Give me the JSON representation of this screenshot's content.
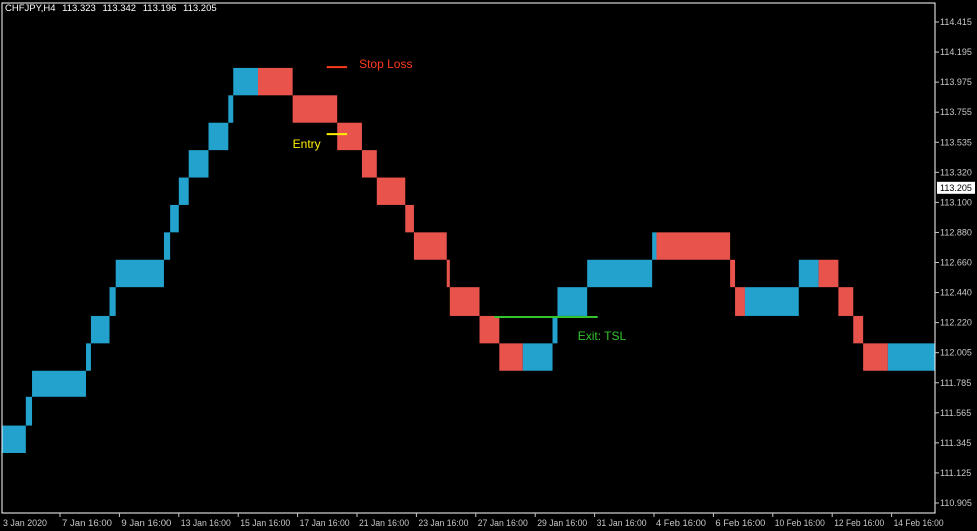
{
  "header": {
    "symbol": "CHFJPY,H4",
    "open": "113.323",
    "high": "113.342",
    "low": "113.196",
    "close": "113.205"
  },
  "colors": {
    "background": "#000000",
    "frame": "#ffffff",
    "axis_text": "#c8c8c8",
    "up_box": "#22a2cc",
    "down_box": "#e8534b",
    "stop_loss": "#ff3b1f",
    "entry": "#ffee00",
    "exit": "#33c42e"
  },
  "chart_data": {
    "type": "box-trend-overlay",
    "symbol": "CHFJPY",
    "timeframe": "H4",
    "current_price": "113.205",
    "ylim": [
      110.905,
      114.415
    ],
    "y_ticks": [
      "114.415",
      "114.195",
      "113.975",
      "113.755",
      "113.535",
      "113.320",
      "113.100",
      "112.880",
      "112.660",
      "112.440",
      "112.220",
      "112.005",
      "111.785",
      "111.565",
      "111.345",
      "111.125",
      "110.905"
    ],
    "x_ticks": [
      {
        "label": "3 Jan 2020",
        "time": "2020-01-03 00:00"
      },
      {
        "label": "7 Jan 16:00",
        "time": "2020-01-07 16:00"
      },
      {
        "label": "9 Jan 16:00",
        "time": "2020-01-09 16:00"
      },
      {
        "label": "13 Jan 16:00",
        "time": "2020-01-13 16:00"
      },
      {
        "label": "15 Jan 16:00",
        "time": "2020-01-15 16:00"
      },
      {
        "label": "17 Jan 16:00",
        "time": "2020-01-17 16:00"
      },
      {
        "label": "21 Jan 16:00",
        "time": "2020-01-21 16:00"
      },
      {
        "label": "23 Jan 16:00",
        "time": "2020-01-23 16:00"
      },
      {
        "label": "27 Jan 16:00",
        "time": "2020-01-27 16:00"
      },
      {
        "label": "29 Jan 16:00",
        "time": "2020-01-29 16:00"
      },
      {
        "label": "31 Jan 16:00",
        "time": "2020-01-31 16:00"
      },
      {
        "label": "4 Feb 16:00",
        "time": "2020-02-04 16:00"
      },
      {
        "label": "6 Feb 16:00",
        "time": "2020-02-06 16:00"
      },
      {
        "label": "10 Feb 16:00",
        "time": "2020-02-10 16:00"
      },
      {
        "label": "12 Feb 16:00",
        "time": "2020-02-12 16:00"
      },
      {
        "label": "14 Feb 16:00",
        "time": "2020-02-14 16:00"
      }
    ],
    "boxes": [
      {
        "start": "2020-01-03 00:00",
        "end": "2020-01-04 22:00",
        "high": 111.47,
        "low": 111.27,
        "trend": "up"
      },
      {
        "start": "2020-01-04 22:00",
        "end": "2020-01-05 10:00",
        "high": 111.68,
        "low": 111.47,
        "trend": "up"
      },
      {
        "start": "2020-01-05 10:00",
        "end": "2020-01-08 13:00",
        "high": 111.87,
        "low": 111.68,
        "trend": "up"
      },
      {
        "start": "2020-01-08 13:00",
        "end": "2020-01-08 17:00",
        "high": 112.07,
        "low": 111.87,
        "trend": "up"
      },
      {
        "start": "2020-01-08 17:00",
        "end": "2020-01-09 08:00",
        "high": 112.27,
        "low": 112.07,
        "trend": "up"
      },
      {
        "start": "2020-01-09 08:00",
        "end": "2020-01-09 13:00",
        "high": 112.48,
        "low": 112.27,
        "trend": "up"
      },
      {
        "start": "2020-01-09 13:00",
        "end": "2020-01-12 16:00",
        "high": 112.68,
        "low": 112.48,
        "trend": "up"
      },
      {
        "start": "2020-01-12 16:00",
        "end": "2020-01-13 02:00",
        "high": 112.88,
        "low": 112.68,
        "trend": "up"
      },
      {
        "start": "2020-01-13 02:00",
        "end": "2020-01-13 16:00",
        "high": 113.08,
        "low": 112.88,
        "trend": "up"
      },
      {
        "start": "2020-01-13 16:00",
        "end": "2020-01-14 00:00",
        "high": 113.28,
        "low": 113.08,
        "trend": "up"
      },
      {
        "start": "2020-01-14 00:00",
        "end": "2020-01-14 16:00",
        "high": 113.48,
        "low": 113.28,
        "trend": "up"
      },
      {
        "start": "2020-01-14 16:00",
        "end": "2020-01-15 08:00",
        "high": 113.68,
        "low": 113.48,
        "trend": "up"
      },
      {
        "start": "2020-01-15 08:00",
        "end": "2020-01-15 12:00",
        "high": 113.88,
        "low": 113.68,
        "trend": "up"
      },
      {
        "start": "2020-01-15 12:00",
        "end": "2020-01-16 08:00",
        "high": 114.08,
        "low": 113.88,
        "trend": "up"
      },
      {
        "start": "2020-01-16 08:00",
        "end": "2020-01-17 12:00",
        "high": 114.08,
        "low": 113.88,
        "trend": "down"
      },
      {
        "start": "2020-01-17 12:00",
        "end": "2020-01-20 08:00",
        "high": 113.88,
        "low": 113.68,
        "trend": "down"
      },
      {
        "start": "2020-01-20 08:00",
        "end": "2020-01-21 20:00",
        "high": 113.68,
        "low": 113.48,
        "trend": "down"
      },
      {
        "start": "2020-01-21 20:00",
        "end": "2020-01-22 08:00",
        "high": 113.48,
        "low": 113.28,
        "trend": "down"
      },
      {
        "start": "2020-01-22 08:00",
        "end": "2020-01-23 07:00",
        "high": 113.28,
        "low": 113.08,
        "trend": "down"
      },
      {
        "start": "2020-01-23 07:00",
        "end": "2020-01-23 14:00",
        "high": 113.08,
        "low": 112.88,
        "trend": "down"
      },
      {
        "start": "2020-01-23 14:00",
        "end": "2020-01-25 17:00",
        "high": 112.88,
        "low": 112.68,
        "trend": "down"
      },
      {
        "start": "2020-01-25 17:00",
        "end": "2020-01-25 22:00",
        "high": 112.68,
        "low": 112.48,
        "trend": "down"
      },
      {
        "start": "2020-01-25 22:00",
        "end": "2020-01-27 19:00",
        "high": 112.48,
        "low": 112.27,
        "trend": "down"
      },
      {
        "start": "2020-01-27 19:00",
        "end": "2020-01-28 11:00",
        "high": 112.27,
        "low": 112.07,
        "trend": "down"
      },
      {
        "start": "2020-01-28 11:00",
        "end": "2020-01-29 06:00",
        "high": 112.07,
        "low": 111.87,
        "trend": "down"
      },
      {
        "start": "2020-01-29 06:00",
        "end": "2020-01-30 06:00",
        "high": 112.07,
        "low": 111.87,
        "trend": "up"
      },
      {
        "start": "2020-01-30 06:00",
        "end": "2020-01-30 10:00",
        "high": 112.27,
        "low": 112.07,
        "trend": "up"
      },
      {
        "start": "2020-01-30 10:00",
        "end": "2020-01-31 10:00",
        "high": 112.48,
        "low": 112.27,
        "trend": "up"
      },
      {
        "start": "2020-01-31 10:00",
        "end": "2020-02-04 13:00",
        "high": 112.68,
        "low": 112.48,
        "trend": "up"
      },
      {
        "start": "2020-02-04 13:00",
        "end": "2020-02-04 18:00",
        "high": 112.88,
        "low": 112.68,
        "trend": "up"
      },
      {
        "start": "2020-02-04 18:00",
        "end": "2020-02-07 19:00",
        "high": 112.88,
        "low": 112.68,
        "trend": "down"
      },
      {
        "start": "2020-02-07 19:00",
        "end": "2020-02-08 03:00",
        "high": 112.68,
        "low": 112.48,
        "trend": "down"
      },
      {
        "start": "2020-02-08 03:00",
        "end": "2020-02-08 19:00",
        "high": 112.48,
        "low": 112.27,
        "trend": "down"
      },
      {
        "start": "2020-02-08 19:00",
        "end": "2020-02-11 13:00",
        "high": 112.48,
        "low": 112.27,
        "trend": "up"
      },
      {
        "start": "2020-02-11 13:00",
        "end": "2020-02-12 05:00",
        "high": 112.68,
        "low": 112.48,
        "trend": "up"
      },
      {
        "start": "2020-02-12 05:00",
        "end": "2020-02-12 21:00",
        "high": 112.68,
        "low": 112.48,
        "trend": "down"
      },
      {
        "start": "2020-02-12 21:00",
        "end": "2020-02-13 09:00",
        "high": 112.48,
        "low": 112.27,
        "trend": "down"
      },
      {
        "start": "2020-02-13 09:00",
        "end": "2020-02-13 17:00",
        "high": 112.27,
        "low": 112.07,
        "trend": "down"
      },
      {
        "start": "2020-02-13 17:00",
        "end": "2020-02-14 13:00",
        "high": 112.07,
        "low": 111.87,
        "trend": "down"
      },
      {
        "start": "2020-02-14 13:00",
        "end": "2020-02-16 04:00",
        "high": 112.07,
        "low": 111.87,
        "trend": "up"
      }
    ],
    "annotations": [
      {
        "id": "stop-loss",
        "label": "Stop Loss",
        "price": 114.086,
        "start": "2020-01-19 15:00",
        "end": "2020-01-21 00:00",
        "label_position": "right",
        "color_key": "stop_loss"
      },
      {
        "id": "entry",
        "label": "Entry",
        "price": 113.597,
        "start": "2020-01-19 15:00",
        "end": "2020-01-21 00:00",
        "label_position": "below-left",
        "color_key": "entry"
      },
      {
        "id": "exit-tsl",
        "label": "Exit: TSL",
        "price": 112.262,
        "start": "2020-01-28 07:00",
        "end": "2020-01-31 21:00",
        "label_position": "below-right",
        "color_key": "exit"
      }
    ]
  }
}
